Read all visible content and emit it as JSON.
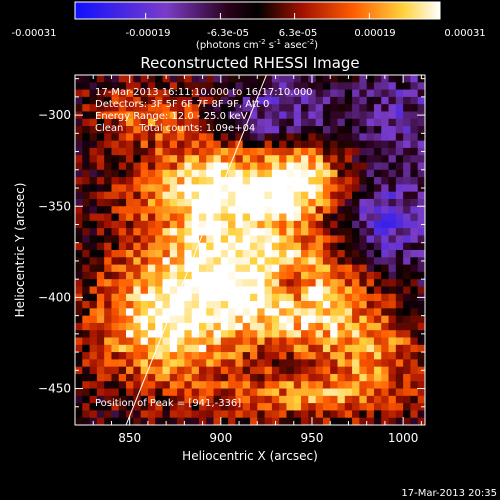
{
  "colorbar": {
    "ticks": [
      "-0.00031",
      "-0.00019",
      "-6.3e-05",
      "6.3e-05",
      "0.00019",
      "0.00031"
    ],
    "unit_label": "(photons cm",
    "unit_sup1": "-2",
    "unit_mid": " s",
    "unit_sup2": "-1",
    "unit_mid2": " asec",
    "unit_sup3": "-2",
    "unit_end": ")"
  },
  "chart_data": {
    "type": "heatmap",
    "title": "Reconstructed RHESSI Image",
    "xlabel": "Heliocentric X (arcsec)",
    "ylabel": "Heliocentric Y (arcsec)",
    "xlim": [
      820,
      1012
    ],
    "ylim": [
      -470,
      -278
    ],
    "x_ticks": [
      850,
      900,
      950,
      1000
    ],
    "y_ticks": [
      -300,
      -350,
      -400,
      -450
    ],
    "x_tick_labels": [
      "850",
      "900",
      "950",
      "1000"
    ],
    "y_tick_labels": [
      "−300",
      "−350",
      "−400",
      "−450"
    ],
    "colormap": "hot-blue diverging",
    "color_range": [
      -0.00031,
      0.00031
    ],
    "limb_line": {
      "from": [
        848,
        -470
      ],
      "to": [
        925,
        -278
      ]
    },
    "annotations": [
      "17-Mar-2013 16:11:10.000 to 16:17:10.000",
      "Detectors: 3F 5F 6F 7F 8F 9F, Att 0",
      "Energy Range: 12.0 - 25.0 keV",
      "Clean     Total counts: 1.09e+04",
      "Position of Peak = [941,-336]"
    ],
    "sources": [
      {
        "x": 900,
        "y": -340,
        "amp": 1.0,
        "sx": 32,
        "sy": 18
      },
      {
        "x": 945,
        "y": -335,
        "amp": 0.85,
        "sx": 16,
        "sy": 13
      },
      {
        "x": 905,
        "y": -385,
        "amp": 0.95,
        "sx": 38,
        "sy": 22
      },
      {
        "x": 870,
        "y": -420,
        "amp": 0.9,
        "sx": 28,
        "sy": 22
      },
      {
        "x": 950,
        "y": -405,
        "amp": 0.7,
        "sx": 25,
        "sy": 20
      },
      {
        "x": 985,
        "y": -430,
        "amp": 0.55,
        "sx": 20,
        "sy": 14
      },
      {
        "x": 950,
        "y": -455,
        "amp": 0.6,
        "sx": 40,
        "sy": 10
      },
      {
        "x": 860,
        "y": -300,
        "amp": 0.5,
        "sx": 22,
        "sy": 12
      },
      {
        "x": 990,
        "y": -360,
        "amp": -0.6,
        "sx": 18,
        "sy": 18
      },
      {
        "x": 930,
        "y": -300,
        "amp": -0.5,
        "sx": 18,
        "sy": 14
      },
      {
        "x": 938,
        "y": -393,
        "amp": -0.8,
        "sx": 8,
        "sy": 8
      },
      {
        "x": 1000,
        "y": -300,
        "amp": -0.35,
        "sx": 20,
        "sy": 20
      }
    ],
    "footer_timestamp": "17-Mar-2013 20:35"
  }
}
